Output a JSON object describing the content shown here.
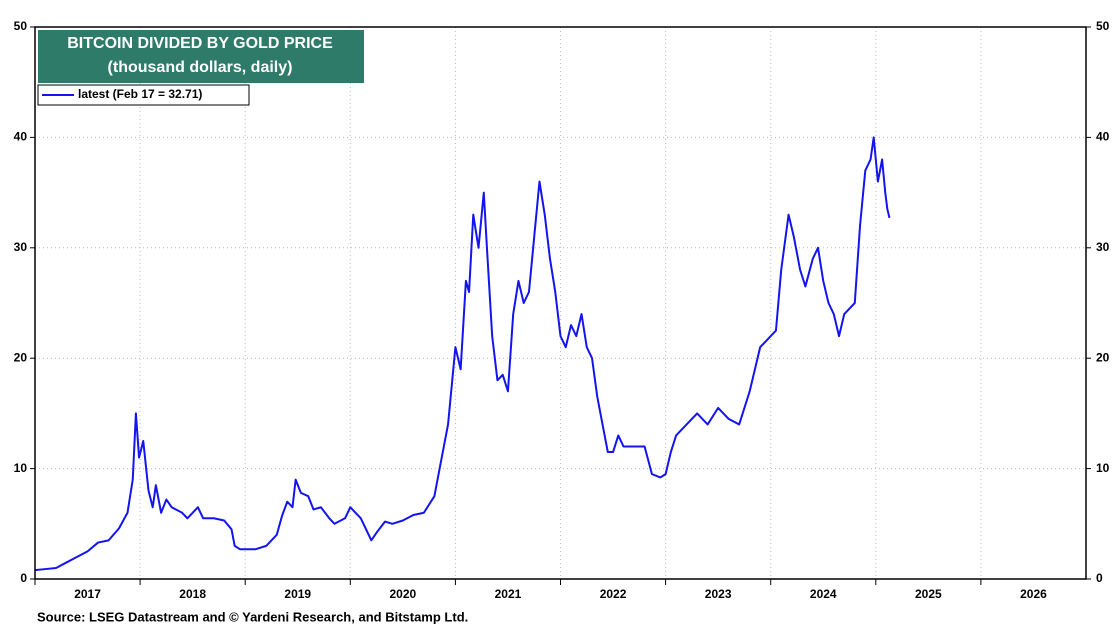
{
  "chart_data": {
    "type": "line",
    "title": "BITCOIN DIVIDED BY GOLD PRICE",
    "subtitle": "(thousand dollars, daily)",
    "source": "Source: LSEG Datastream and © Yardeni Research, and Bitstamp Ltd.",
    "x": [
      2017.0,
      2017.1,
      2017.2,
      2017.3,
      2017.4,
      2017.5,
      2017.6,
      2017.7,
      2017.8,
      2017.88,
      2017.93,
      2017.96,
      2017.99,
      2018.03,
      2018.08,
      2018.12,
      2018.15,
      2018.2,
      2018.25,
      2018.3,
      2018.4,
      2018.45,
      2018.55,
      2018.6,
      2018.7,
      2018.8,
      2018.87,
      2018.9,
      2018.95,
      2019.0,
      2019.1,
      2019.2,
      2019.3,
      2019.35,
      2019.4,
      2019.45,
      2019.48,
      2019.53,
      2019.6,
      2019.65,
      2019.72,
      2019.8,
      2019.85,
      2019.95,
      2020.0,
      2020.1,
      2020.2,
      2020.25,
      2020.33,
      2020.4,
      2020.5,
      2020.6,
      2020.7,
      2020.8,
      2020.85,
      2020.93,
      2020.97,
      2021.0,
      2021.05,
      2021.1,
      2021.13,
      2021.17,
      2021.22,
      2021.27,
      2021.3,
      2021.35,
      2021.4,
      2021.45,
      2021.5,
      2021.55,
      2021.6,
      2021.65,
      2021.7,
      2021.75,
      2021.8,
      2021.85,
      2021.9,
      2021.95,
      2022.0,
      2022.05,
      2022.1,
      2022.15,
      2022.2,
      2022.25,
      2022.3,
      2022.35,
      2022.4,
      2022.45,
      2022.5,
      2022.55,
      2022.6,
      2022.7,
      2022.8,
      2022.87,
      2022.95,
      2023.0,
      2023.05,
      2023.1,
      2023.2,
      2023.3,
      2023.4,
      2023.5,
      2023.6,
      2023.7,
      2023.8,
      2023.9,
      2023.95,
      2024.0,
      2024.05,
      2024.1,
      2024.17,
      2024.22,
      2024.28,
      2024.33,
      2024.4,
      2024.45,
      2024.5,
      2024.55,
      2024.6,
      2024.65,
      2024.7,
      2024.75,
      2024.8,
      2024.85,
      2024.9,
      2024.95,
      2024.98,
      2025.02,
      2025.06,
      2025.09,
      2025.11,
      2025.13
    ],
    "series": [
      {
        "name": "latest (Feb 17 = 32.71)",
        "color": "#1414f0",
        "values": [
          0.8,
          0.9,
          1.0,
          1.5,
          2.0,
          2.5,
          3.3,
          3.5,
          4.6,
          6.0,
          9,
          15,
          11,
          12.5,
          8,
          6.5,
          8.5,
          6,
          7.2,
          6.5,
          6,
          5.5,
          6.5,
          5.5,
          5.5,
          5.3,
          4.5,
          3,
          2.7,
          2.7,
          2.7,
          3.0,
          4.0,
          5.7,
          7.0,
          6.5,
          9.0,
          7.8,
          7.5,
          6.3,
          6.5,
          5.5,
          5.0,
          5.5,
          6.5,
          5.5,
          3.5,
          4.2,
          5.2,
          5.0,
          5.3,
          5.8,
          6.0,
          7.5,
          10,
          14,
          18,
          21,
          19,
          27,
          26,
          33,
          30,
          35,
          30,
          22,
          18,
          18.5,
          17,
          24,
          27,
          25,
          26,
          31,
          36,
          33,
          29,
          26,
          22,
          21,
          23,
          22,
          24,
          21,
          20,
          16.5,
          14,
          11.5,
          11.5,
          13,
          12,
          12,
          12,
          9.5,
          9.2,
          9.5,
          11.5,
          13,
          14,
          15,
          14,
          15.5,
          14.5,
          14,
          17,
          21,
          21.5,
          22,
          22.5,
          28,
          33,
          31,
          28,
          26.5,
          29,
          30,
          27,
          25,
          24,
          22,
          24,
          24.5,
          25,
          32,
          37,
          38,
          40,
          36,
          38,
          35,
          33.5,
          32.71
        ]
      }
    ],
    "xlim": [
      2017,
      2027
    ],
    "xticks": [
      {
        "value": 2017,
        "label": "2017"
      },
      {
        "value": 2018,
        "label": "2018"
      },
      {
        "value": 2019,
        "label": "2019"
      },
      {
        "value": 2020,
        "label": "2020"
      },
      {
        "value": 2021,
        "label": "2021"
      },
      {
        "value": 2022,
        "label": "2022"
      },
      {
        "value": 2023,
        "label": "2023"
      },
      {
        "value": 2024,
        "label": "2024"
      },
      {
        "value": 2025,
        "label": "2025"
      },
      {
        "value": 2026,
        "label": "2026"
      }
    ],
    "ylim": [
      0,
      50
    ],
    "yticks": [
      0,
      10,
      20,
      30,
      40,
      50
    ],
    "y2lim": [
      0,
      50
    ],
    "y2ticks": [
      0,
      10,
      20,
      30,
      40,
      50
    ],
    "grid": true
  }
}
